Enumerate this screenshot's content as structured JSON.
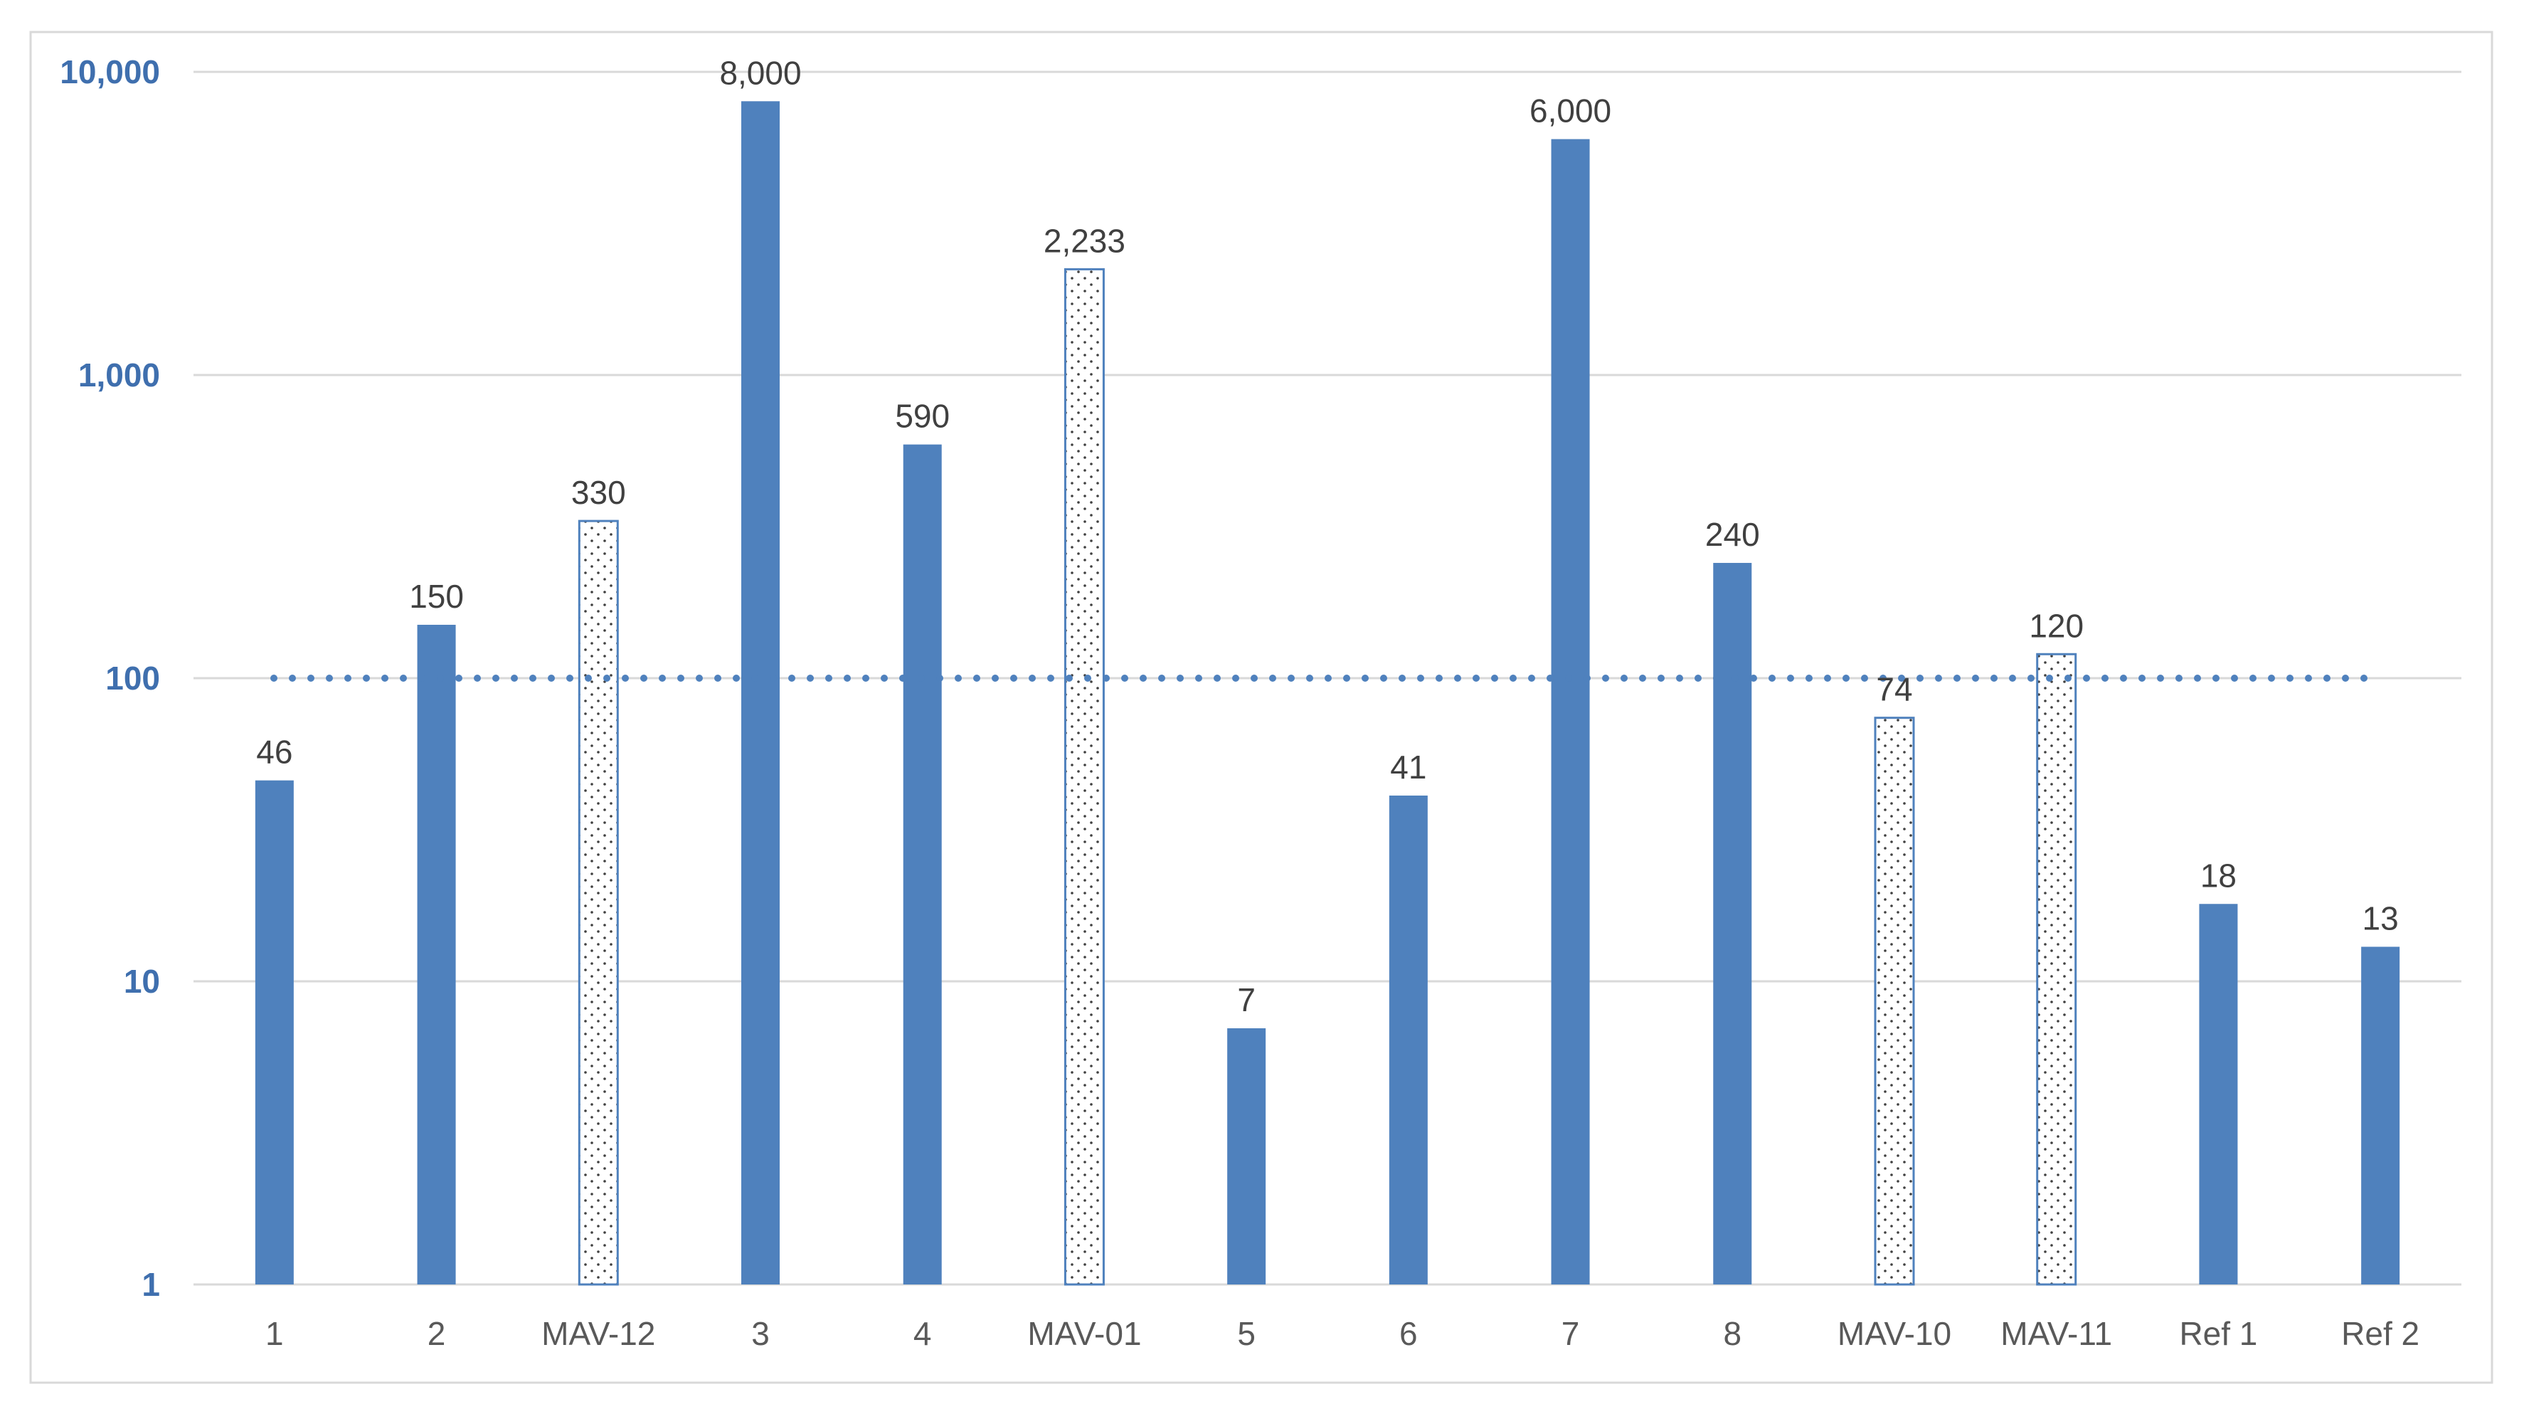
{
  "chart_data": {
    "type": "bar",
    "y_scale": "log",
    "ylim": [
      1,
      10000
    ],
    "y_ticks": [
      1,
      10,
      100,
      1000,
      10000
    ],
    "y_tick_labels": [
      "1",
      "10",
      "100",
      "1,000",
      "10,000"
    ],
    "categories": [
      "1",
      "2",
      "MAV-12",
      "3",
      "4",
      "MAV-01",
      "5",
      "6",
      "7",
      "8",
      "MAV-10",
      "MAV-11",
      "Ref 1",
      "Ref 2"
    ],
    "values": [
      46,
      150,
      330,
      8000,
      590,
      2233,
      7,
      41,
      6000,
      240,
      74,
      120,
      18,
      13
    ],
    "value_labels": [
      "46",
      "150",
      "330",
      "8,000",
      "590",
      "2,233",
      "7",
      "41",
      "6,000",
      "240",
      "74",
      "120",
      "18",
      "13"
    ],
    "bar_styles": [
      "solid",
      "solid",
      "dotted",
      "solid",
      "solid",
      "dotted",
      "solid",
      "solid",
      "solid",
      "solid",
      "dotted",
      "dotted",
      "solid",
      "solid"
    ],
    "reference_line": {
      "value": 100,
      "style": "dotted"
    },
    "grid": true,
    "colors": {
      "bar": "#4f81bd",
      "axis_label": "#3f6fae",
      "grid": "#d9d9d9",
      "frame": "#d9d9d9",
      "pattern_dot": "#404040"
    }
  }
}
